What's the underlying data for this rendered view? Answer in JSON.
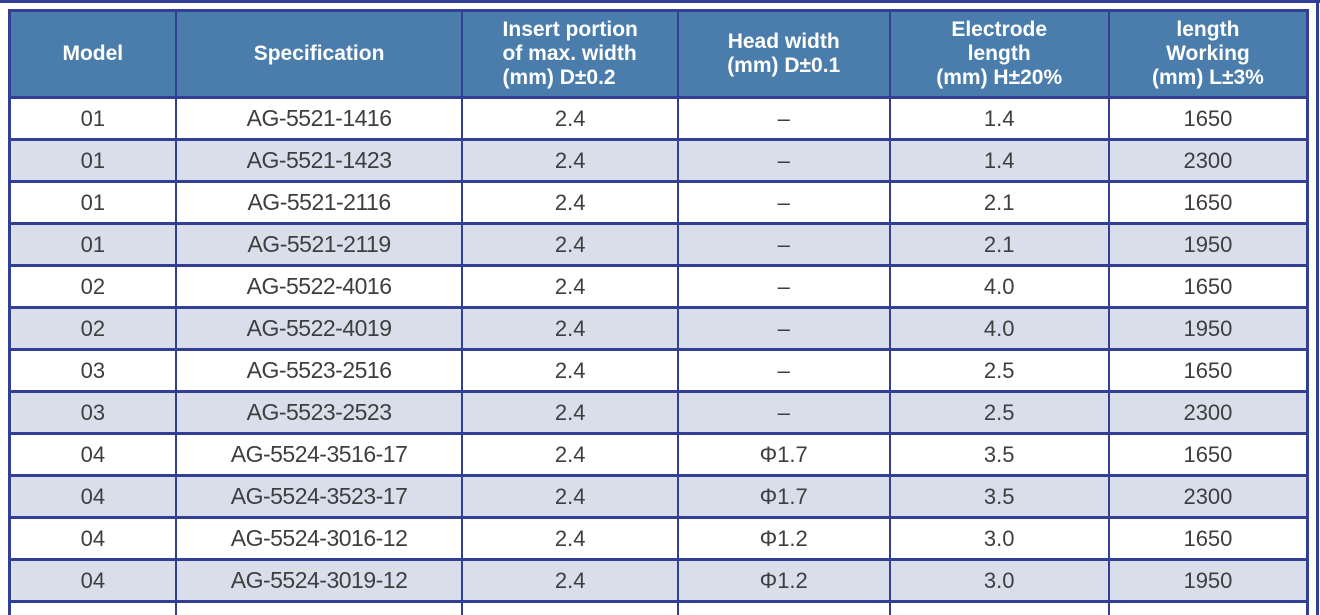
{
  "page": {
    "frame_color": "#333e95",
    "background": "#ffffff"
  },
  "table": {
    "colors": {
      "header_bg": "#4a7dab",
      "header_text": "#ffffff",
      "border": "#333e95",
      "row_bg": "#ffffff",
      "row_alt_bg": "#d9deeb",
      "body_text": "#3e3e40"
    },
    "columns": [
      {
        "id": "model",
        "width_pct": 12.8,
        "lines": [
          "Model"
        ]
      },
      {
        "id": "specification",
        "width_pct": 22.1,
        "lines": [
          "Specification"
        ]
      },
      {
        "id": "insert-width",
        "width_pct": 16.6,
        "lines": [
          "Insert portion",
          "of max. width",
          "(mm) D±0.2"
        ]
      },
      {
        "id": "head-width",
        "width_pct": 16.3,
        "lines": [
          "Head width",
          "(mm) D±0.1"
        ]
      },
      {
        "id": "electrode-length",
        "width_pct": 16.9,
        "lines": [
          "Electrode",
          "length",
          "(mm) H±20%"
        ]
      },
      {
        "id": "working-length",
        "width_pct": 15.3,
        "lines": [
          "length",
          "Working",
          "(mm) L±3%"
        ]
      }
    ],
    "rows": [
      [
        "01",
        "AG-5521-1416",
        "2.4",
        "–",
        "1.4",
        "1650"
      ],
      [
        "01",
        "AG-5521-1423",
        "2.4",
        "–",
        "1.4",
        "2300"
      ],
      [
        "01",
        "AG-5521-2116",
        "2.4",
        "–",
        "2.1",
        "1650"
      ],
      [
        "01",
        "AG-5521-2119",
        "2.4",
        "–",
        "2.1",
        "1950"
      ],
      [
        "02",
        "AG-5522-4016",
        "2.4",
        "–",
        "4.0",
        "1650"
      ],
      [
        "02",
        "AG-5522-4019",
        "2.4",
        "–",
        "4.0",
        "1950"
      ],
      [
        "03",
        "AG-5523-2516",
        "2.4",
        "–",
        "2.5",
        "1650"
      ],
      [
        "03",
        "AG-5523-2523",
        "2.4",
        "–",
        "2.5",
        "2300"
      ],
      [
        "04",
        "AG-5524-3516-17",
        "2.4",
        "Φ1.7",
        "3.5",
        "1650"
      ],
      [
        "04",
        "AG-5524-3523-17",
        "2.4",
        "Φ1.7",
        "3.5",
        "2300"
      ],
      [
        "04",
        "AG-5524-3016-12",
        "2.4",
        "Φ1.2",
        "3.0",
        "1650"
      ],
      [
        "04",
        "AG-5524-3019-12",
        "2.4",
        "Φ1.2",
        "3.0",
        "1950"
      ]
    ]
  }
}
